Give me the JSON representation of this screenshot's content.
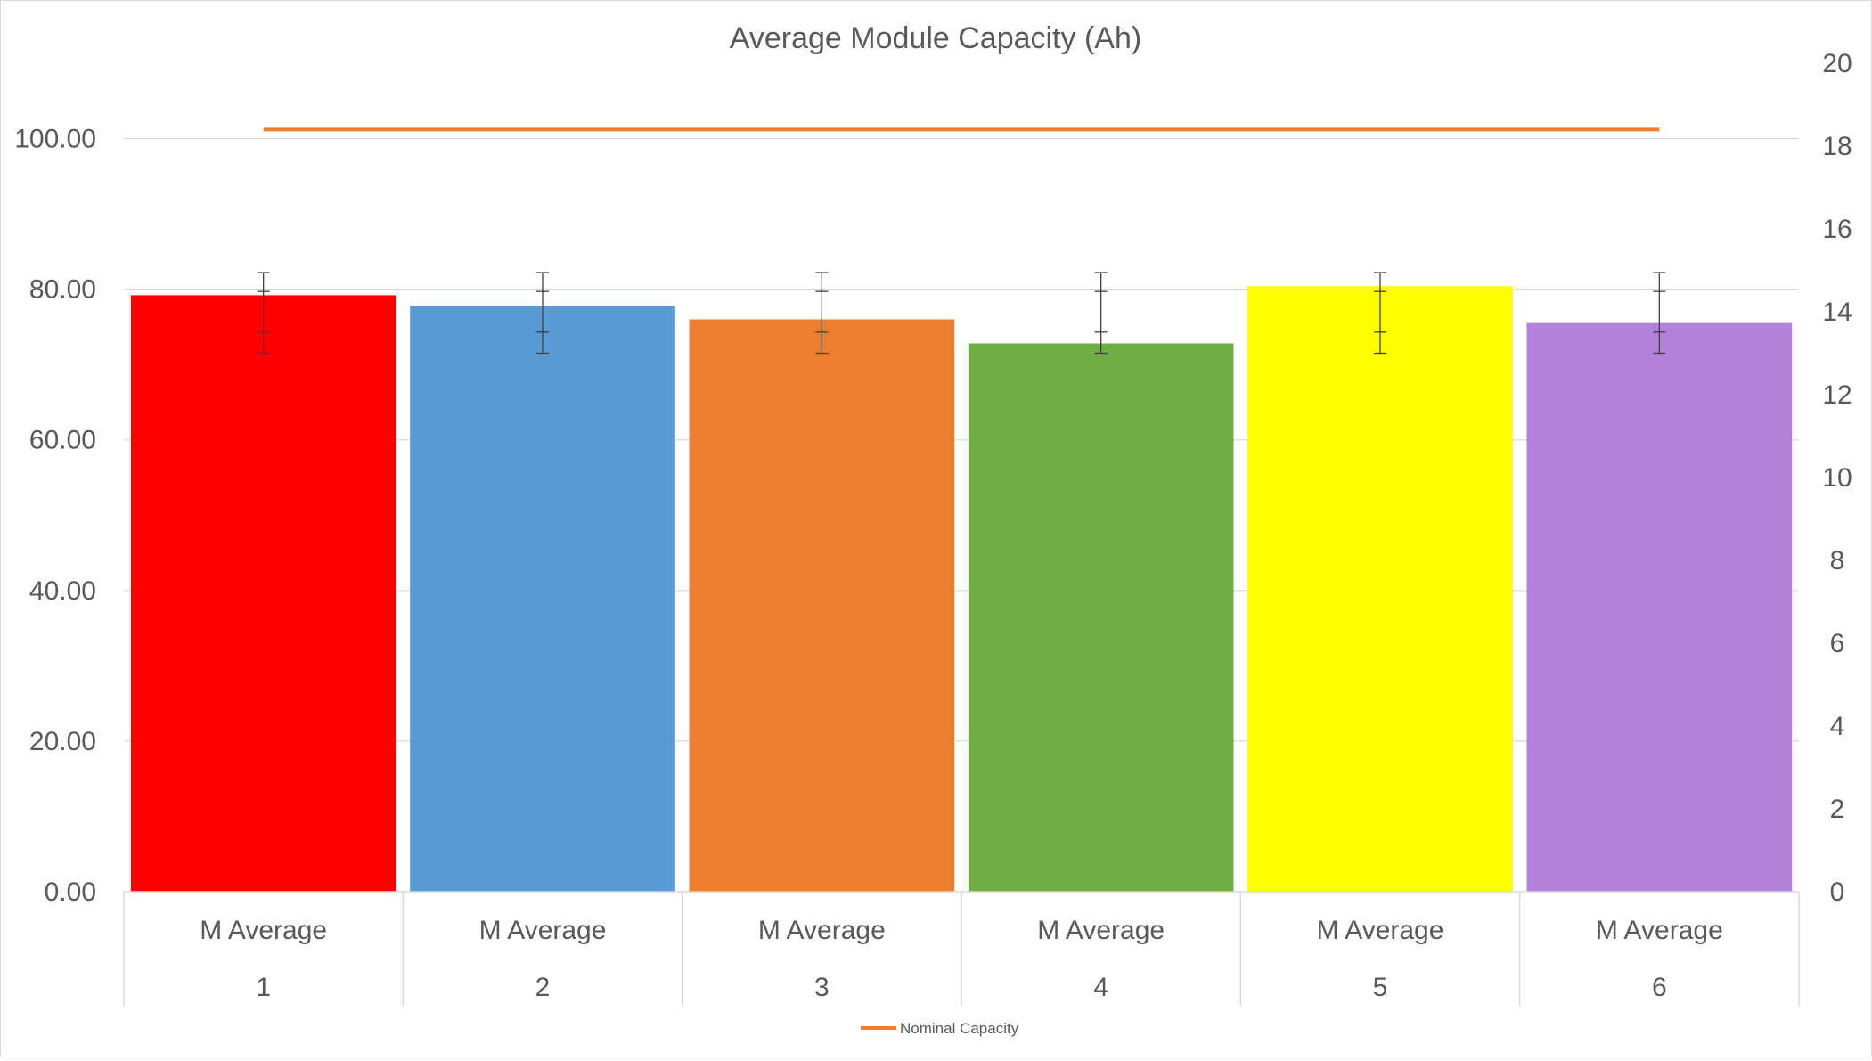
{
  "chart_data": {
    "type": "bar",
    "title": "Average Module Capacity (Ah)",
    "categories": [
      {
        "group": "M Average",
        "sub": "1"
      },
      {
        "group": "M Average",
        "sub": "2"
      },
      {
        "group": "M Average",
        "sub": "3"
      },
      {
        "group": "M Average",
        "sub": "4"
      },
      {
        "group": "M Average",
        "sub": "5"
      },
      {
        "group": "M Average",
        "sub": "6"
      }
    ],
    "values": [
      79.2,
      77.8,
      76.0,
      72.8,
      80.4,
      75.5
    ],
    "bar_colors": [
      "#ff0000",
      "#5b9bd5",
      "#ed7d31",
      "#70ad47",
      "#ffff00",
      "#b281d9"
    ],
    "error_bars": [
      {
        "low": 71.5,
        "high": 82.2,
        "inner_low": 74.3,
        "inner_high": 79.7
      },
      {
        "low": 71.5,
        "high": 82.2,
        "inner_low": 74.3,
        "inner_high": 79.7
      },
      {
        "low": 71.5,
        "high": 82.2,
        "inner_low": 74.3,
        "inner_high": 79.7
      },
      {
        "low": 71.5,
        "high": 82.2,
        "inner_low": 74.3,
        "inner_high": 79.7
      },
      {
        "low": 71.5,
        "high": 82.2,
        "inner_low": 74.3,
        "inner_high": 79.7
      },
      {
        "low": 71.5,
        "high": 82.2,
        "inner_low": 74.3,
        "inner_high": 79.7
      }
    ],
    "line_series": {
      "name": "Nominal Capacity",
      "axis": "right",
      "values": [
        18.4,
        18.4,
        18.4,
        18.4,
        18.4,
        18.4
      ],
      "color": "#ed7d31"
    },
    "left_axis": {
      "ylim": [
        0,
        110
      ],
      "ticks": [
        0,
        20,
        40,
        60,
        80,
        100
      ],
      "tick_labels": [
        "0.00",
        "20.00",
        "40.00",
        "60.00",
        "80.00",
        "100.00"
      ]
    },
    "right_axis": {
      "ylim": [
        0,
        20
      ],
      "ticks": [
        0,
        2,
        4,
        6,
        8,
        10,
        12,
        14,
        16,
        18,
        20
      ],
      "tick_labels": [
        "0",
        "2",
        "4",
        "6",
        "8",
        "10",
        "12",
        "14",
        "16",
        "18",
        "20"
      ]
    },
    "grid": true,
    "legend_position": "bottom"
  }
}
